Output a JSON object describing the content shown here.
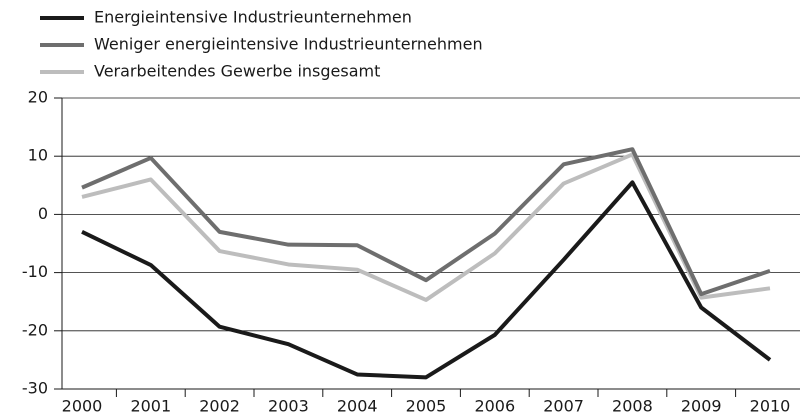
{
  "chart_data": {
    "type": "line",
    "categories": [
      "2000",
      "2001",
      "2002",
      "2003",
      "2004",
      "2005",
      "2006",
      "2007",
      "2008",
      "2009",
      "2010"
    ],
    "series": [
      {
        "name": "Energieintensive Industrieunternehmen",
        "color": "#1a1a1a",
        "values": [
          -3,
          -8.7,
          -19.3,
          -22.3,
          -27.5,
          -28,
          -20.7,
          -7.8,
          5.5,
          -16,
          -25
        ]
      },
      {
        "name": "Weniger energieintensive Industrieunternehmen",
        "color": "#6e6e6e",
        "values": [
          4.6,
          9.7,
          -3,
          -5.2,
          -5.3,
          -11.3,
          -3.3,
          8.6,
          11.2,
          -13.7,
          -9.7
        ]
      },
      {
        "name": "Verarbeitendes Gewerbe insgesamt",
        "color": "#bdbdbd",
        "values": [
          3,
          6,
          -6.3,
          -8.6,
          -9.5,
          -14.7,
          -6.7,
          5.3,
          10.3,
          -14.3,
          -12.7
        ]
      }
    ],
    "ylim": [
      -30,
      20
    ],
    "yticks": [
      -30,
      -20,
      -10,
      0,
      10,
      20
    ],
    "grid": true,
    "legend": "top-left"
  }
}
